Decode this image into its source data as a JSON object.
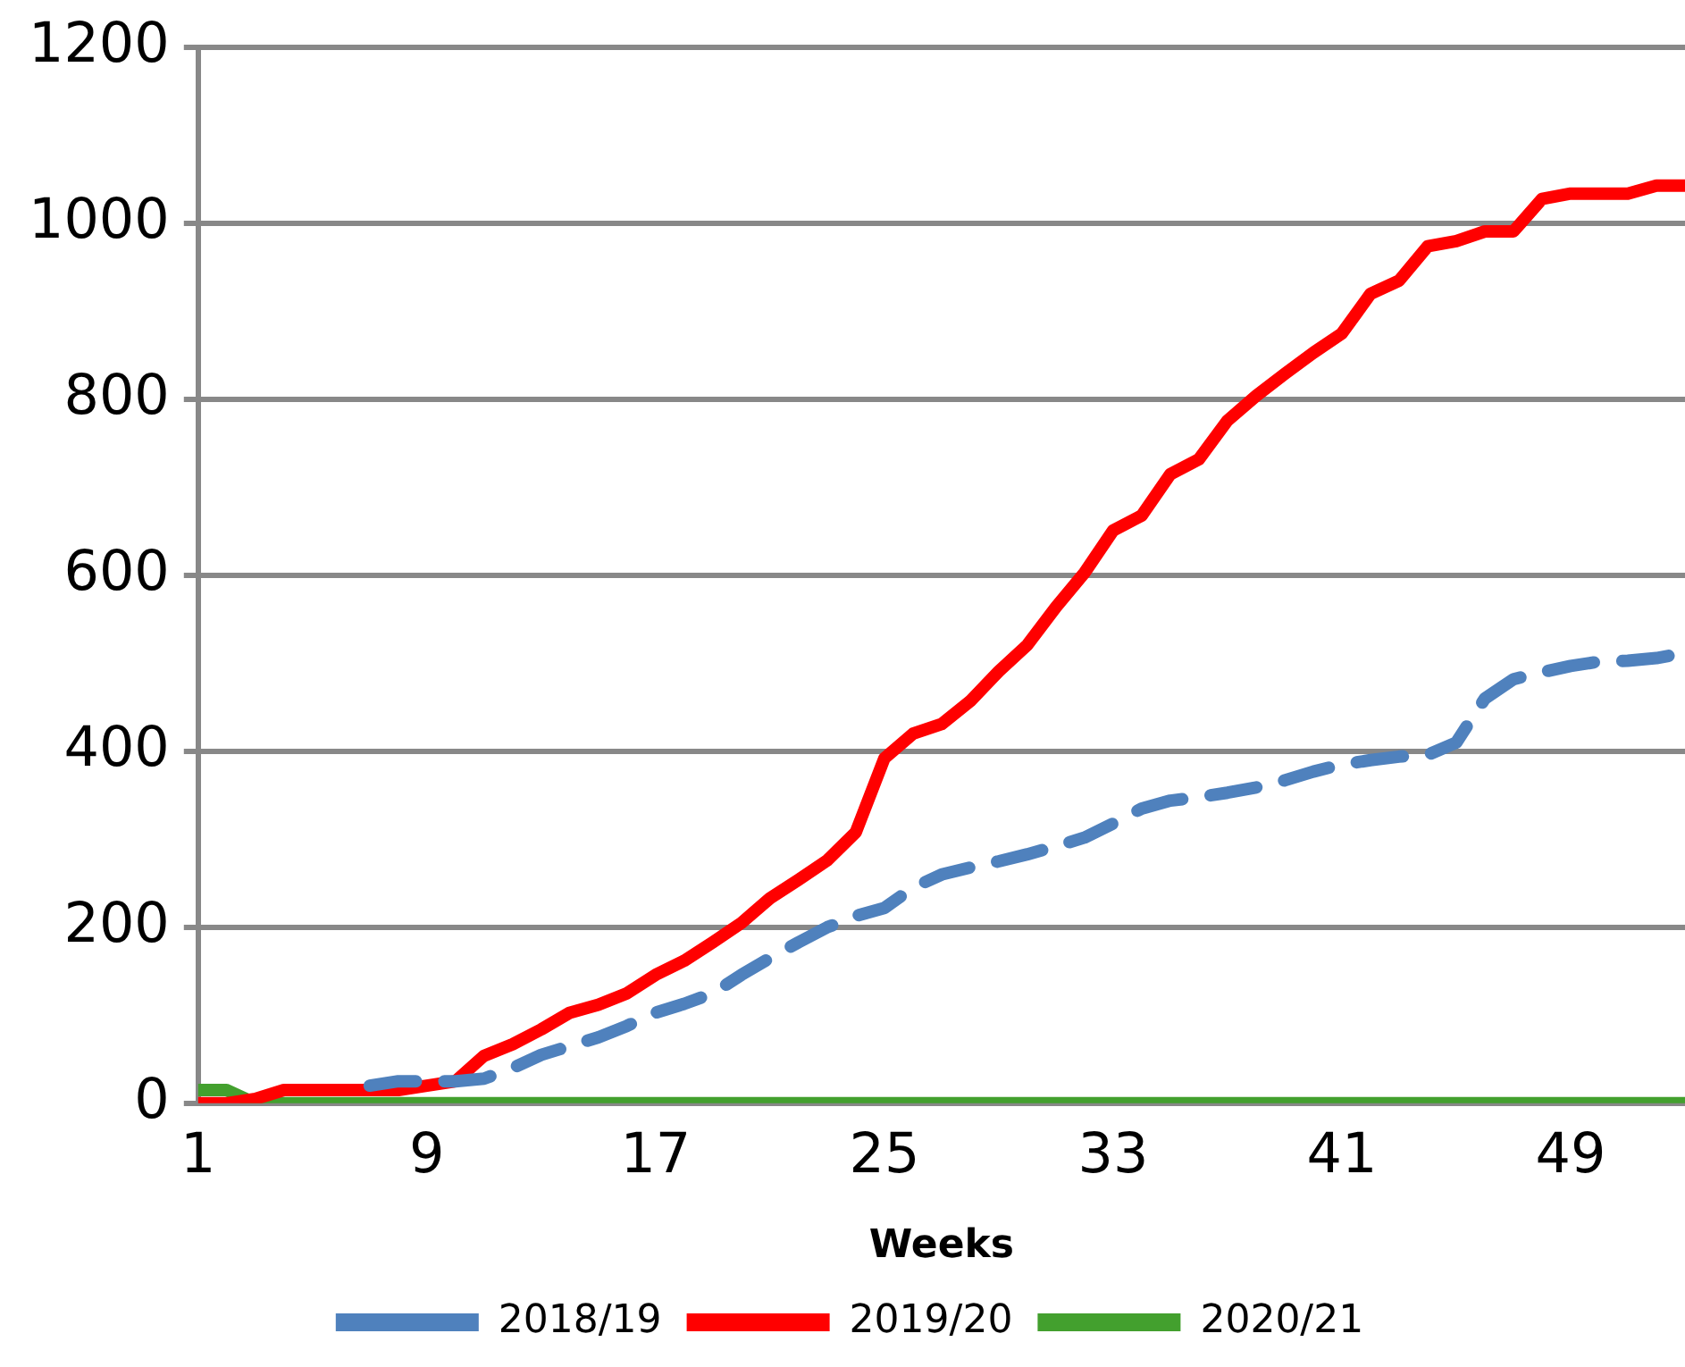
{
  "chart_data": {
    "type": "line",
    "xlabel": "Weeks",
    "x": [
      1,
      2,
      3,
      4,
      5,
      6,
      7,
      8,
      9,
      10,
      11,
      12,
      13,
      14,
      15,
      16,
      17,
      18,
      19,
      20,
      21,
      22,
      23,
      24,
      25,
      26,
      27,
      28,
      29,
      30,
      31,
      32,
      33,
      34,
      35,
      36,
      37,
      38,
      39,
      40,
      41,
      42,
      43,
      44,
      45,
      46,
      47,
      48,
      49,
      50,
      51,
      52,
      53
    ],
    "xlim": [
      1,
      53
    ],
    "xticks": [
      1,
      9,
      17,
      25,
      33,
      41,
      49
    ],
    "ylim": [
      0,
      1200
    ],
    "yticks": [
      0,
      200,
      400,
      600,
      800,
      1000,
      1200
    ],
    "grid": "y",
    "legend": "bottom",
    "marker": "none",
    "series": [
      {
        "name": "2018/19",
        "color": "#4f81bd",
        "line_style": "dashed",
        "values": [
          null,
          null,
          null,
          null,
          null,
          null,
          20,
          25,
          25,
          25,
          28,
          40,
          55,
          65,
          75,
          88,
          103,
          113,
          125,
          146,
          165,
          183,
          200,
          213,
          222,
          245,
          260,
          268,
          275,
          283,
          292,
          302,
          318,
          335,
          344,
          348,
          353,
          359,
          367,
          377,
          385,
          390,
          394,
          396,
          410,
          460,
          482,
          490,
          497,
          502,
          503,
          506,
          512
        ]
      },
      {
        "name": "2019/20",
        "color": "#ff0000",
        "line_style": "solid",
        "values": [
          0,
          0,
          5,
          15,
          15,
          15,
          15,
          15,
          20,
          25,
          54,
          67,
          84,
          103,
          112,
          125,
          146,
          162,
          183,
          205,
          233,
          254,
          276,
          308,
          392,
          420,
          431,
          457,
          491,
          521,
          564,
          603,
          651,
          668,
          715,
          732,
          776,
          804,
          829,
          853,
          875,
          920,
          935,
          974,
          980,
          991,
          991,
          1028,
          1034,
          1034,
          1034,
          1043,
          1043
        ]
      },
      {
        "name": "2020/21",
        "color": "#43a02e",
        "line_style": "solid",
        "values": [
          15,
          15,
          0,
          0,
          0,
          0,
          0,
          0,
          0,
          0,
          0,
          0,
          0,
          0,
          0,
          0,
          0,
          0,
          0,
          0,
          0,
          0,
          0,
          0,
          0,
          0,
          0,
          0,
          0,
          0,
          0,
          0,
          0,
          0,
          0,
          0,
          0,
          0,
          0,
          0,
          0,
          0,
          0,
          0,
          0,
          0,
          0,
          0,
          0,
          0,
          0,
          0,
          0
        ]
      }
    ]
  }
}
